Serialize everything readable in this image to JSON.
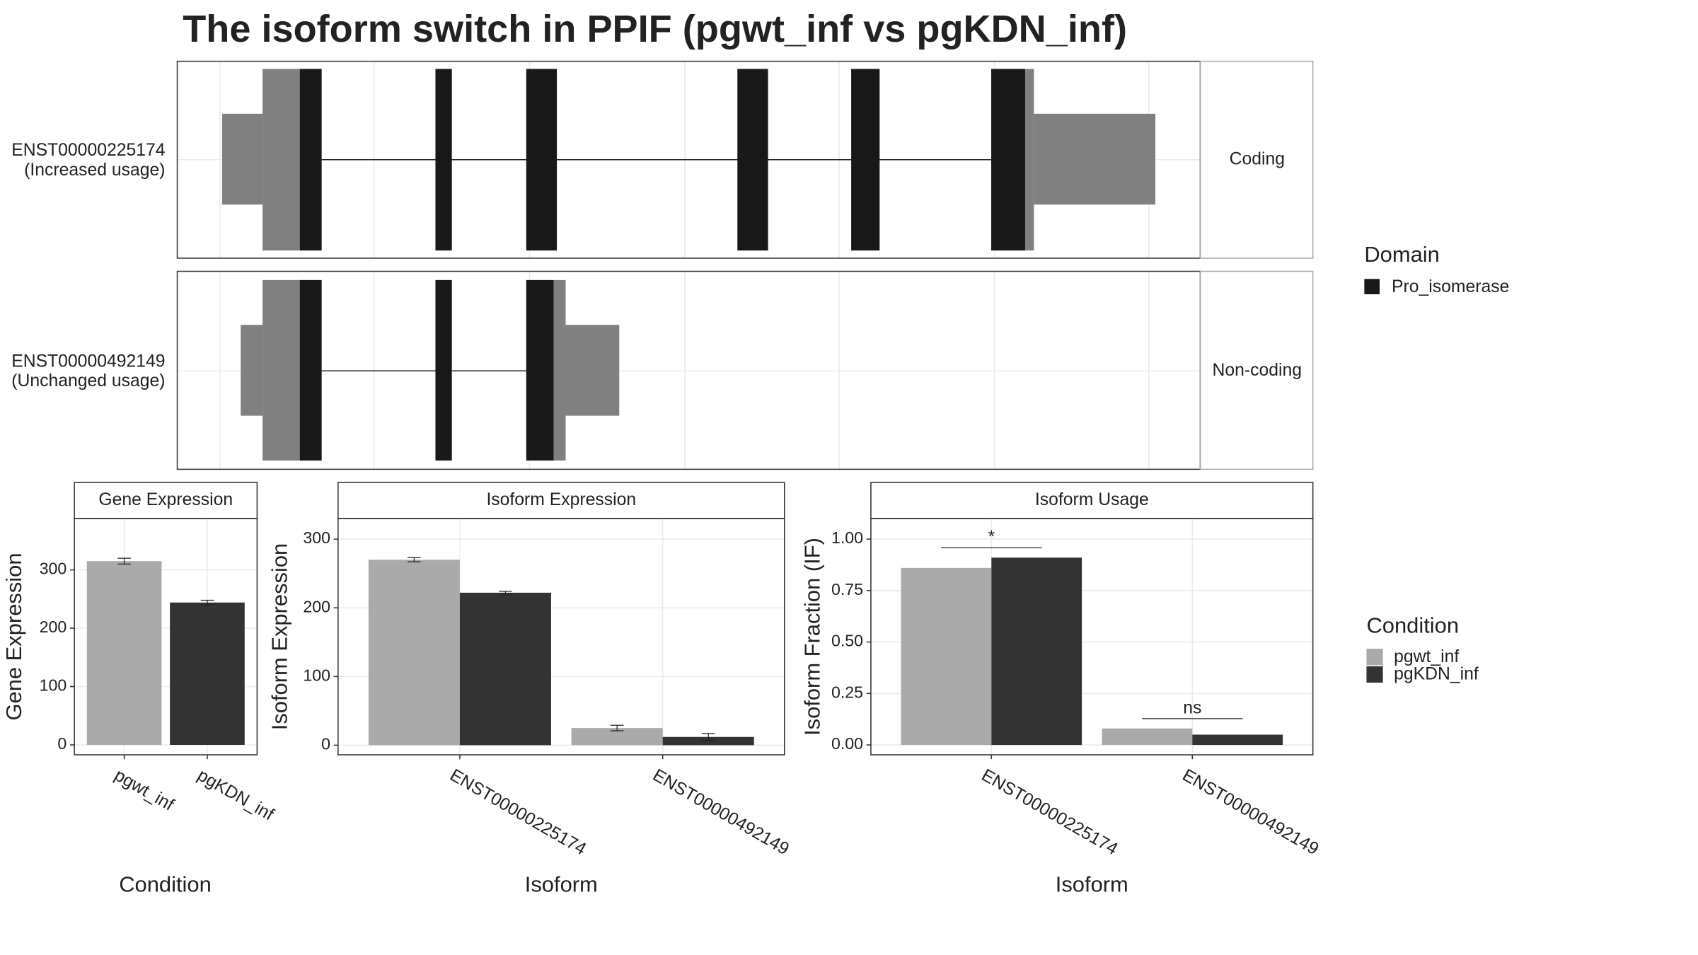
{
  "title": "The isoform switch in PPIF (pgwt_inf vs pgKDN_inf)",
  "transcripts": [
    {
      "name": "ENST00000225174",
      "usage": "(Increased usage)",
      "facet": "Coding"
    },
    {
      "name": "ENST00000492149",
      "usage": "(Unchanged usage)",
      "facet": "Non-coding"
    }
  ],
  "domain_legend": {
    "title": "Domain",
    "items": [
      {
        "name": "Pro_isomerase",
        "color": "#181818"
      }
    ]
  },
  "chart_data": [
    {
      "type": "bar",
      "title": "Gene Expression",
      "y_label": "Gene Expression",
      "x_label": "Condition",
      "categories": [
        "pgwt_inf",
        "pgKDN_inf"
      ],
      "values": [
        315,
        244
      ],
      "errors": [
        5,
        4
      ],
      "colors": [
        "#aaaaaa",
        "#333333"
      ],
      "ylim": [
        -17,
        388
      ],
      "yticks": [
        0,
        100,
        200,
        300
      ],
      "grid": true
    },
    {
      "type": "grouped_bar",
      "title": "Isoform Expression",
      "y_label": "Isoform Expression",
      "x_label": "Isoform",
      "categories": [
        "ENST00000225174",
        "ENST00000492149"
      ],
      "legend_title": "Condition",
      "series": [
        {
          "name": "pgwt_inf",
          "color": "#aaaaaa",
          "values": [
            270,
            25
          ],
          "errors": [
            3,
            4
          ]
        },
        {
          "name": "pgKDN_inf",
          "color": "#333333",
          "values": [
            222,
            12
          ],
          "errors": [
            2,
            5
          ]
        }
      ],
      "ylim": [
        -14,
        330
      ],
      "yticks": [
        0,
        100,
        200,
        300
      ],
      "grid": true
    },
    {
      "type": "grouped_bar",
      "title": "Isoform Usage",
      "y_label": "Isoform Fraction (IF)",
      "x_label": "Isoform",
      "categories": [
        "ENST00000225174",
        "ENST00000492149"
      ],
      "series": [
        {
          "name": "pgwt_inf",
          "color": "#aaaaaa",
          "values": [
            0.86,
            0.08
          ]
        },
        {
          "name": "pgKDN_inf",
          "color": "#333333",
          "values": [
            0.91,
            0.05
          ]
        }
      ],
      "annotations": [
        "*",
        "ns"
      ],
      "ylim": [
        -0.048,
        1.1
      ],
      "yticks": [
        {
          "value": 0,
          "label": "0.00"
        },
        {
          "value": 0.25,
          "label": "0.25"
        },
        {
          "value": 0.5,
          "label": "0.50"
        },
        {
          "value": 0.75,
          "label": "0.75"
        },
        {
          "value": 1,
          "label": "1.00"
        }
      ],
      "grid": true
    }
  ]
}
